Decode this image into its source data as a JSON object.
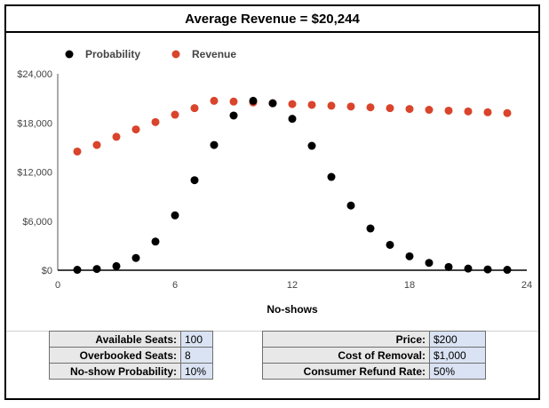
{
  "title": "Average Revenue = $20,244",
  "parameters_left": [
    {
      "label": "Available Seats:",
      "value": "100"
    },
    {
      "label": "Overbooked Seats:",
      "value": "8"
    },
    {
      "label": "No-show Probability:",
      "value": "10%"
    }
  ],
  "parameters_right": [
    {
      "label": "Price:",
      "value": "$200"
    },
    {
      "label": "Cost of Removal:",
      "value": "$1,000"
    },
    {
      "label": "Consumer Refund Rate:",
      "value": "50%"
    }
  ],
  "chart_data": {
    "type": "scatter",
    "title": "",
    "xlabel": "No-shows",
    "ylabel": "",
    "xlim": [
      0,
      24
    ],
    "ylim": [
      0,
      24000
    ],
    "x_ticks": [
      "0",
      "6",
      "12",
      "18",
      "24"
    ],
    "y_ticks": [
      "$0",
      "$6,000",
      "$12,000",
      "$18,000",
      "$24,000"
    ],
    "legend_position": "top-left",
    "grid": false,
    "series": [
      {
        "name": "Probability",
        "color": "#000000",
        "x": [
          1,
          2,
          3,
          4,
          5,
          6,
          7,
          8,
          9,
          10,
          11,
          12,
          13,
          14,
          15,
          16,
          17,
          18,
          19,
          20,
          21,
          22,
          23
        ],
        "y": [
          50,
          150,
          500,
          1500,
          3500,
          6700,
          11000,
          15300,
          18900,
          20700,
          20400,
          18500,
          15200,
          11400,
          7900,
          5100,
          3100,
          1700,
          900,
          400,
          200,
          100,
          50
        ]
      },
      {
        "name": "Revenue",
        "color": "#d9442b",
        "x": [
          1,
          2,
          3,
          4,
          5,
          6,
          7,
          8,
          9,
          10,
          11,
          12,
          13,
          14,
          15,
          16,
          17,
          18,
          19,
          20,
          21,
          22,
          23
        ],
        "y": [
          14500,
          15300,
          16300,
          17200,
          18100,
          19000,
          19800,
          20700,
          20600,
          20500,
          20400,
          20300,
          20200,
          20100,
          20000,
          19900,
          19800,
          19700,
          19600,
          19500,
          19400,
          19300,
          19200
        ]
      }
    ]
  }
}
